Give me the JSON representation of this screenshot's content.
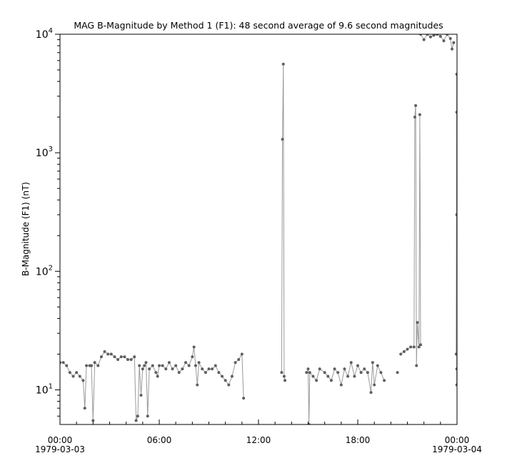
{
  "chart_data": {
    "type": "line",
    "title": "MAG  B-Magnitude by Method 1 (F1): 48 second average of 9.6 second magnitudes",
    "ylabel": "B-Magnitude (F1) (nT)",
    "xlabel": "",
    "yscale": "log",
    "ylim": [
      5.1,
      10000
    ],
    "xlim": [
      "1979-03-03 00:00",
      "1979-03-04 00:00"
    ],
    "y_ticks": [
      {
        "base": "10",
        "exp": "1"
      },
      {
        "base": "10",
        "exp": "2"
      },
      {
        "base": "10",
        "exp": "3"
      },
      {
        "base": "10",
        "exp": "4"
      }
    ],
    "x_ticks": [
      {
        "time": "00:00",
        "date": "1979-03-03"
      },
      {
        "time": "06:00",
        "date": ""
      },
      {
        "time": "12:00",
        "date": ""
      },
      {
        "time": "18:00",
        "date": ""
      },
      {
        "time": "00:00",
        "date": "1979-03-04"
      }
    ],
    "grid": false,
    "colors": {
      "points": "#5f5f5f",
      "line": "#9a9a9a"
    },
    "series_segments": [
      [
        [
          "00:00",
          17
        ],
        [
          "00:12",
          17
        ],
        [
          "00:24",
          16
        ],
        [
          "00:36",
          14
        ],
        [
          "00:48",
          13
        ],
        [
          "01:00",
          14
        ],
        [
          "01:12",
          13
        ],
        [
          "01:24",
          12
        ],
        [
          "01:30",
          7
        ],
        [
          "01:36",
          16
        ],
        [
          "01:48",
          16
        ],
        [
          "01:54",
          16
        ],
        [
          "02:00",
          5.5
        ],
        [
          "02:06",
          17
        ],
        [
          "02:18",
          16
        ],
        [
          "02:30",
          19
        ],
        [
          "02:42",
          21
        ],
        [
          "02:54",
          20
        ],
        [
          "03:06",
          20
        ],
        [
          "03:18",
          19
        ],
        [
          "03:30",
          18
        ],
        [
          "03:42",
          19
        ],
        [
          "03:54",
          19
        ],
        [
          "04:06",
          18
        ],
        [
          "04:18",
          18
        ],
        [
          "04:30",
          19
        ],
        [
          "04:36",
          5.5
        ],
        [
          "04:42",
          6
        ],
        [
          "04:48",
          16
        ],
        [
          "04:54",
          9
        ],
        [
          "05:00",
          15
        ],
        [
          "05:06",
          16
        ],
        [
          "05:12",
          17
        ],
        [
          "05:18",
          6
        ],
        [
          "05:24",
          15
        ],
        [
          "05:36",
          16
        ],
        [
          "05:48",
          14
        ],
        [
          "05:54",
          13
        ],
        [
          "06:00",
          16
        ],
        [
          "06:12",
          16
        ],
        [
          "06:24",
          15
        ],
        [
          "06:36",
          17
        ],
        [
          "06:48",
          15
        ],
        [
          "07:00",
          16
        ],
        [
          "07:12",
          14
        ],
        [
          "07:24",
          15
        ],
        [
          "07:36",
          17
        ],
        [
          "07:48",
          16
        ],
        [
          "08:00",
          19
        ],
        [
          "08:06",
          23
        ],
        [
          "08:12",
          16
        ],
        [
          "08:18",
          11
        ],
        [
          "08:24",
          17
        ],
        [
          "08:36",
          15
        ],
        [
          "08:48",
          14
        ],
        [
          "09:00",
          15
        ],
        [
          "09:12",
          15
        ],
        [
          "09:24",
          16
        ],
        [
          "09:36",
          14
        ],
        [
          "09:48",
          13
        ],
        [
          "10:00",
          12
        ],
        [
          "10:12",
          11
        ],
        [
          "10:24",
          13
        ],
        [
          "10:36",
          17
        ],
        [
          "10:48",
          18
        ],
        [
          "11:00",
          20
        ],
        [
          "11:06",
          8.5
        ]
      ],
      [
        [
          "13:24",
          14
        ],
        [
          "13:27",
          1300
        ],
        [
          "13:30",
          5600
        ],
        [
          "13:33",
          13
        ],
        [
          "13:36",
          12
        ]
      ],
      [
        [
          "14:54",
          14
        ],
        [
          "15:00",
          15
        ],
        [
          "15:03",
          5
        ],
        [
          "15:06",
          14
        ],
        [
          "15:18",
          13
        ],
        [
          "15:30",
          12
        ],
        [
          "15:42",
          15
        ],
        [
          "16:00",
          14
        ],
        [
          "16:12",
          13
        ],
        [
          "16:24",
          12
        ],
        [
          "16:36",
          15
        ],
        [
          "16:48",
          14
        ],
        [
          "17:00",
          11
        ],
        [
          "17:12",
          15
        ],
        [
          "17:24",
          13
        ],
        [
          "17:36",
          17
        ],
        [
          "17:48",
          13
        ],
        [
          "18:00",
          16
        ],
        [
          "18:12",
          14
        ],
        [
          "18:24",
          15
        ],
        [
          "18:36",
          14
        ],
        [
          "18:48",
          9.5
        ],
        [
          "18:54",
          17
        ],
        [
          "19:00",
          11
        ],
        [
          "19:12",
          16
        ],
        [
          "19:24",
          14
        ],
        [
          "19:36",
          12
        ]
      ],
      [
        [
          "20:24",
          14
        ]
      ],
      [
        [
          "20:36",
          20
        ],
        [
          "20:48",
          21
        ],
        [
          "21:00",
          22
        ],
        [
          "21:12",
          23
        ],
        [
          "21:24",
          23
        ],
        [
          "21:27",
          2000
        ],
        [
          "21:30",
          2500
        ],
        [
          "21:33",
          16
        ],
        [
          "21:36",
          37
        ],
        [
          "21:42",
          23
        ],
        [
          "21:45",
          2100
        ],
        [
          "21:48",
          24
        ]
      ],
      [
        [
          "21:48",
          10000
        ],
        [
          "22:00",
          9000
        ],
        [
          "22:12",
          10000
        ],
        [
          "22:24",
          9500
        ],
        [
          "22:36",
          9800
        ],
        [
          "22:48",
          10000
        ],
        [
          "23:00",
          9600
        ],
        [
          "23:12",
          8800
        ],
        [
          "23:24",
          10000
        ],
        [
          "23:36",
          9200
        ],
        [
          "23:42",
          7500
        ],
        [
          "23:48",
          8500
        ]
      ],
      [
        [
          "23:57",
          20
        ],
        [
          "23:59",
          4600
        ],
        [
          "23:59",
          2200
        ],
        [
          "23:59",
          300
        ],
        [
          "23:59",
          15
        ],
        [
          "23:59",
          11
        ]
      ]
    ]
  }
}
